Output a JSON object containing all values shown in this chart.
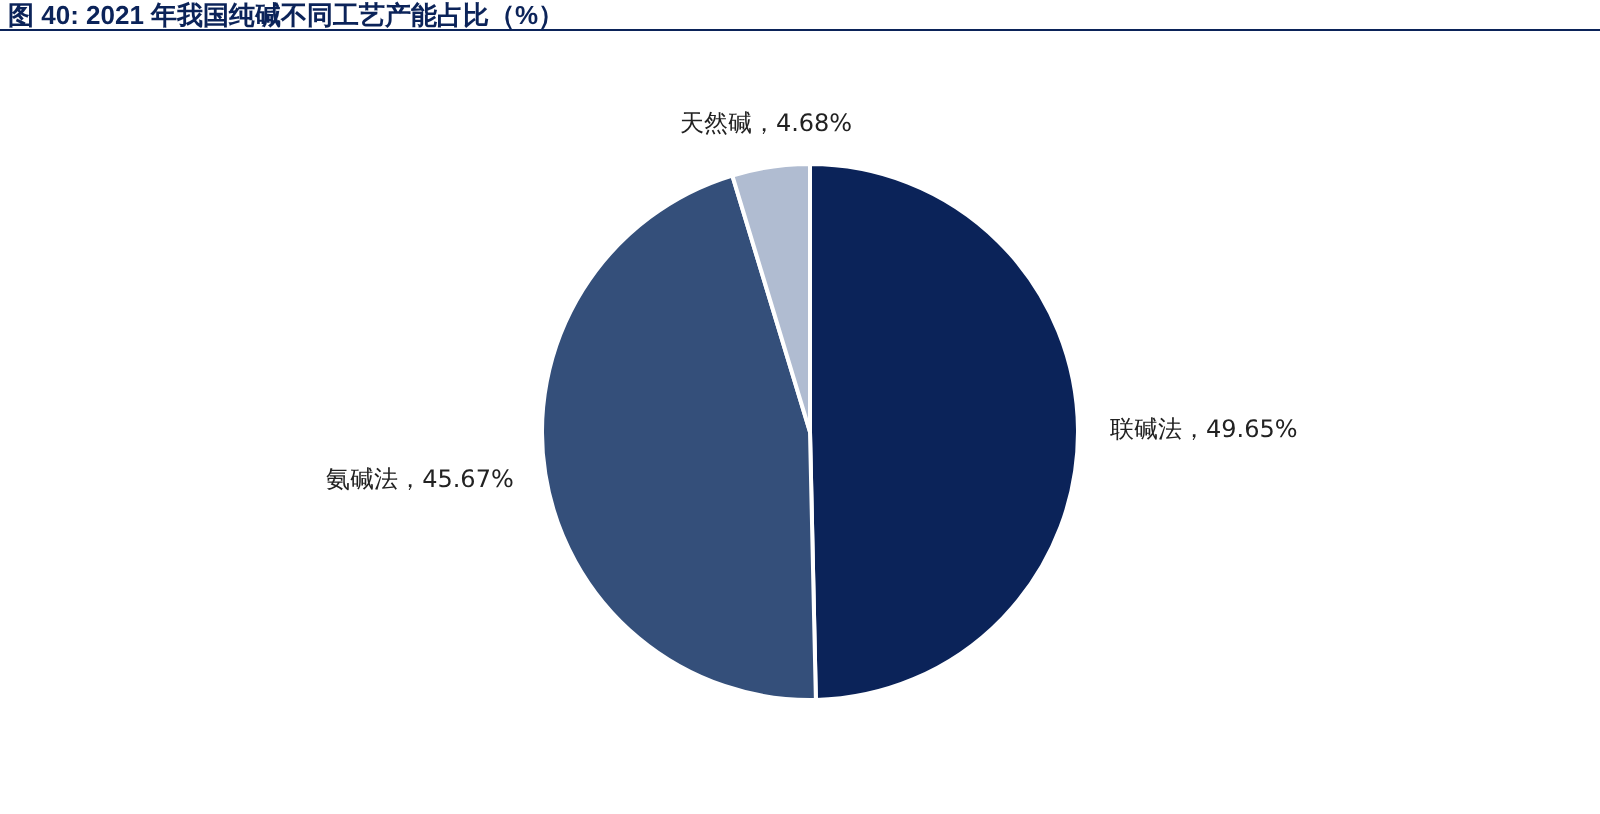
{
  "chart_data": {
    "type": "pie",
    "title": "图 40:  2021 年我国纯碱不同工艺产能占比（%）",
    "categories": [
      "联碱法",
      "氨碱法",
      "天然碱"
    ],
    "values": [
      49.65,
      45.67,
      4.68
    ],
    "colors": [
      "#0b2359",
      "#344f7a",
      "#b0bcd1"
    ],
    "value_labels": [
      "49.65%",
      "45.67%",
      "4.68%"
    ],
    "legend": false
  }
}
